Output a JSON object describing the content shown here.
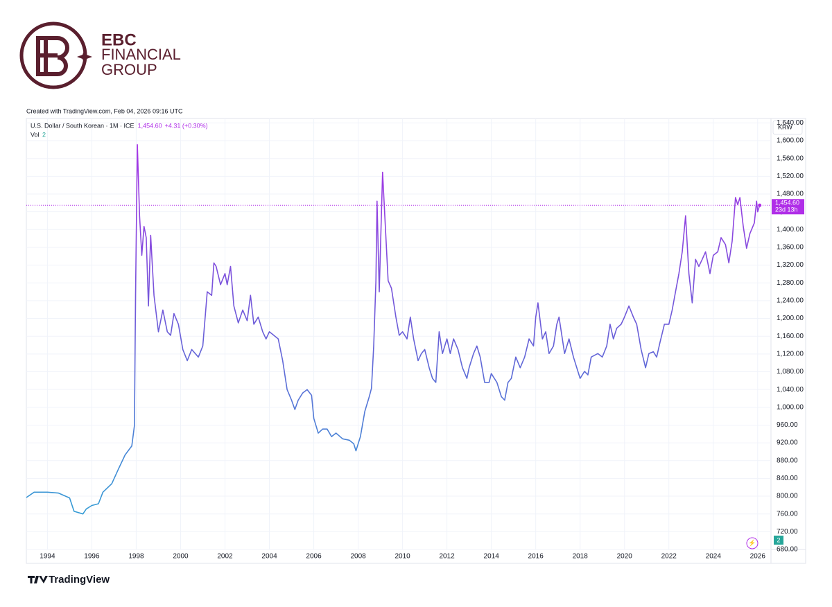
{
  "brand": {
    "name": "EBC",
    "line1": "FINANCIAL",
    "line2": "GROUP"
  },
  "credit": "Created with TradingView.com, Feb 04, 2026 09:16 UTC",
  "footer": "TradingView",
  "chart_data": {
    "type": "line",
    "title": "U.S. Dollar / South Korean · 1M · ICE",
    "price_label": "1,454.60",
    "change_label": "+4.31 (+0.30%)",
    "volume_label": "Vol",
    "volume_value": "2",
    "currency": "KRW",
    "countdown": "23d 13h",
    "last_price_label": "1,454.60",
    "colors": [
      "#2aa8d4",
      "#6a5fd8",
      "#b02ee8"
    ],
    "grid": true,
    "xlim": [
      1993.05,
      2026.6
    ],
    "ylim": [
      680,
      1650
    ],
    "xticks": [
      1994,
      1996,
      1998,
      2000,
      2002,
      2004,
      2006,
      2008,
      2010,
      2012,
      2014,
      2016,
      2018,
      2020,
      2022,
      2024,
      2026
    ],
    "yticks": [
      {
        "value": 680,
        "label": "680.00"
      },
      {
        "value": 720,
        "label": "720.00"
      },
      {
        "value": 760,
        "label": "760.00"
      },
      {
        "value": 800,
        "label": "800.00"
      },
      {
        "value": 840,
        "label": "840.00"
      },
      {
        "value": 880,
        "label": "880.00"
      },
      {
        "value": 920,
        "label": "920.00"
      },
      {
        "value": 960,
        "label": "960.00"
      },
      {
        "value": 1000,
        "label": "1,000.00"
      },
      {
        "value": 1040,
        "label": "1,040.00"
      },
      {
        "value": 1080,
        "label": "1,080.00"
      },
      {
        "value": 1120,
        "label": "1,120.00"
      },
      {
        "value": 1160,
        "label": "1,160.00"
      },
      {
        "value": 1200,
        "label": "1,200.00"
      },
      {
        "value": 1240,
        "label": "1,240.00"
      },
      {
        "value": 1280,
        "label": "1,280.00"
      },
      {
        "value": 1320,
        "label": "1,320.00"
      },
      {
        "value": 1360,
        "label": "1,360.00"
      },
      {
        "value": 1400,
        "label": "1,400.00"
      },
      {
        "value": 1440,
        "label": "1,440.00"
      },
      {
        "value": 1480,
        "label": "1,480.00"
      },
      {
        "value": 1520,
        "label": "1,520.00"
      },
      {
        "value": 1560,
        "label": "1,560.00"
      },
      {
        "value": 1600,
        "label": "1,600.00"
      },
      {
        "value": 1640,
        "label": "1,640.00"
      }
    ],
    "series": [
      {
        "name": "U.S. Dollar / South Korean",
        "x": [
          1993.05,
          1993.4,
          1994,
          1994.5,
          1995,
          1995.2,
          1995.6,
          1995.75,
          1996,
          1996.3,
          1996.5,
          1996.9,
          1997.2,
          1997.5,
          1997.8,
          1997.92,
          1997.97,
          1998.05,
          1998.15,
          1998.25,
          1998.35,
          1998.45,
          1998.55,
          1998.65,
          1998.8,
          1999,
          1999.2,
          1999.4,
          1999.55,
          1999.7,
          1999.9,
          2000.1,
          2000.3,
          2000.5,
          2000.8,
          2001,
          2001.2,
          2001.4,
          2001.5,
          2001.6,
          2001.8,
          2002,
          2002.1,
          2002.25,
          2002.4,
          2002.6,
          2002.8,
          2003,
          2003.15,
          2003.3,
          2003.5,
          2003.7,
          2003.85,
          2004,
          2004.2,
          2004.4,
          2004.6,
          2004.8,
          2005,
          2005.15,
          2005.3,
          2005.5,
          2005.7,
          2005.9,
          2006,
          2006.2,
          2006.4,
          2006.6,
          2006.8,
          2007,
          2007.3,
          2007.6,
          2007.8,
          2007.9,
          2008.1,
          2008.3,
          2008.5,
          2008.6,
          2008.7,
          2008.8,
          2008.85,
          2008.95,
          2009.1,
          2009.2,
          2009.35,
          2009.5,
          2009.7,
          2009.85,
          2010,
          2010.2,
          2010.35,
          2010.5,
          2010.7,
          2010.85,
          2011,
          2011.2,
          2011.35,
          2011.5,
          2011.65,
          2011.8,
          2012,
          2012.15,
          2012.3,
          2012.5,
          2012.7,
          2012.9,
          2013,
          2013.2,
          2013.35,
          2013.5,
          2013.7,
          2013.9,
          2014,
          2014.25,
          2014.45,
          2014.6,
          2014.75,
          2014.9,
          2015.1,
          2015.3,
          2015.5,
          2015.7,
          2015.9,
          2016,
          2016.1,
          2016.3,
          2016.45,
          2016.6,
          2016.8,
          2016.95,
          2017.05,
          2017.3,
          2017.5,
          2017.7,
          2017.9,
          2018,
          2018.2,
          2018.35,
          2018.5,
          2018.8,
          2019,
          2019.2,
          2019.35,
          2019.5,
          2019.65,
          2019.85,
          2020,
          2020.2,
          2020.4,
          2020.55,
          2020.75,
          2020.95,
          2021.1,
          2021.3,
          2021.45,
          2021.6,
          2021.8,
          2022,
          2022.15,
          2022.3,
          2022.45,
          2022.6,
          2022.75,
          2022.9,
          2023.05,
          2023.2,
          2023.35,
          2023.5,
          2023.65,
          2023.85,
          2024,
          2024.2,
          2024.35,
          2024.55,
          2024.7,
          2024.85,
          2025,
          2025.1,
          2025.2,
          2025.35,
          2025.5,
          2025.65,
          2025.85,
          2025.95,
          2026,
          2026.09
        ],
        "values": [
          797,
          809,
          809,
          807,
          796,
          766,
          760,
          771,
          779,
          783,
          809,
          828,
          861,
          893,
          913,
          959,
          1252,
          1591,
          1431,
          1342,
          1407,
          1382,
          1228,
          1387,
          1252,
          1170,
          1219,
          1170,
          1162,
          1211,
          1187,
          1130,
          1105,
          1130,
          1113,
          1138,
          1260,
          1252,
          1325,
          1317,
          1276,
          1301,
          1276,
          1317,
          1228,
          1190,
          1219,
          1195,
          1252,
          1187,
          1203,
          1170,
          1154,
          1170,
          1162,
          1154,
          1105,
          1040,
          1016,
          995,
          1016,
          1032,
          1040,
          1027,
          975,
          942,
          951,
          951,
          934,
          942,
          929,
          926,
          918,
          902,
          934,
          991,
          1024,
          1043,
          1138,
          1285,
          1464,
          1260,
          1529,
          1431,
          1285,
          1268,
          1203,
          1162,
          1170,
          1154,
          1203,
          1154,
          1105,
          1121,
          1130,
          1089,
          1065,
          1056,
          1170,
          1121,
          1154,
          1121,
          1154,
          1130,
          1089,
          1065,
          1089,
          1121,
          1138,
          1113,
          1056,
          1056,
          1076,
          1056,
          1024,
          1016,
          1056,
          1065,
          1113,
          1089,
          1113,
          1154,
          1138,
          1203,
          1235,
          1154,
          1170,
          1121,
          1138,
          1187,
          1203,
          1121,
          1154,
          1113,
          1081,
          1065,
          1081,
          1073,
          1113,
          1121,
          1113,
          1138,
          1187,
          1154,
          1178,
          1187,
          1203,
          1228,
          1203,
          1187,
          1130,
          1089,
          1121,
          1125,
          1113,
          1146,
          1187,
          1187,
          1219,
          1260,
          1301,
          1350,
          1431,
          1301,
          1235,
          1333,
          1317,
          1333,
          1350,
          1301,
          1342,
          1350,
          1382,
          1366,
          1325,
          1374,
          1472,
          1456,
          1472,
          1407,
          1358,
          1391,
          1415,
          1464,
          1440,
          1454.6
        ]
      }
    ]
  }
}
